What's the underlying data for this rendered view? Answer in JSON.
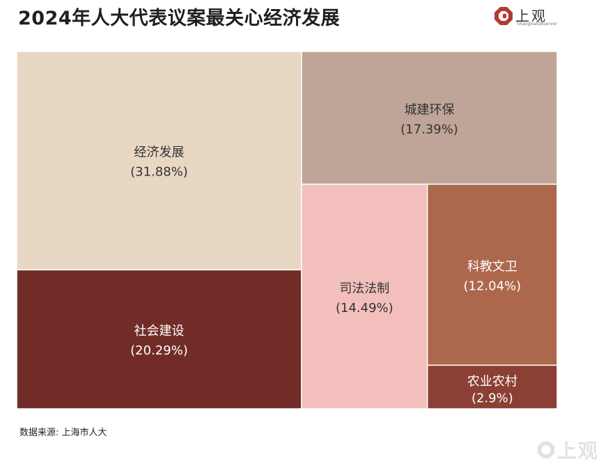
{
  "header": {
    "title": "2024年人大代表议案最关心经济发展",
    "logo_text": "上观",
    "logo_subtext": "ShanghaiObserver"
  },
  "chart_data": {
    "type": "treemap",
    "title": "2024年人大代表议案最关心经济发展",
    "items": [
      {
        "name": "经济发展",
        "value": 31.88,
        "label": "(31.88%)",
        "color": "#e8d7c3",
        "text_color": "#333333"
      },
      {
        "name": "社会建设",
        "value": 20.29,
        "label": "(20.29%)",
        "color": "#722c27",
        "text_color": "#ffffff"
      },
      {
        "name": "城建环保",
        "value": 17.39,
        "label": "(17.39%)",
        "color": "#bfa597",
        "text_color": "#333333"
      },
      {
        "name": "司法法制",
        "value": 14.49,
        "label": "(14.49%)",
        "color": "#f2bfbd",
        "text_color": "#333333"
      },
      {
        "name": "科教文卫",
        "value": 12.04,
        "label": "(12.04%)",
        "color": "#ad674c",
        "text_color": "#ffffff"
      },
      {
        "name": "农业农村",
        "value": 2.9,
        "label": "(2.9%)",
        "color": "#8c3f34",
        "text_color": "#ffffff"
      }
    ]
  },
  "footer": {
    "source": "数据来源: 上海市人大",
    "watermark": "上观"
  }
}
